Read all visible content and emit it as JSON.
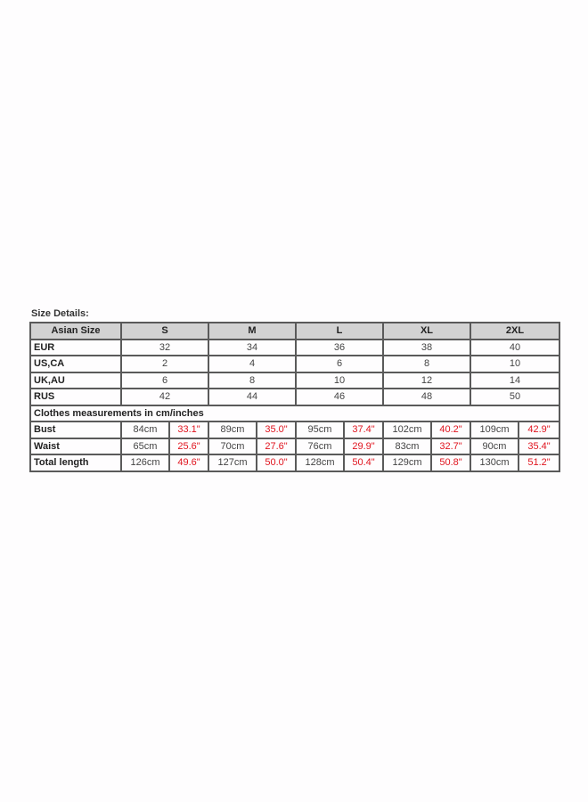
{
  "title": "Size Details:",
  "header": {
    "label": "Asian Size",
    "sizes": [
      "S",
      "M",
      "L",
      "XL",
      "2XL"
    ]
  },
  "conversion_rows": [
    {
      "label": "EUR",
      "values": [
        "32",
        "34",
        "36",
        "38",
        "40"
      ]
    },
    {
      "label": "US,CA",
      "values": [
        "2",
        "4",
        "6",
        "8",
        "10"
      ]
    },
    {
      "label": "UK,AU",
      "values": [
        "6",
        "8",
        "10",
        "12",
        "14"
      ]
    },
    {
      "label": "RUS",
      "values": [
        "42",
        "44",
        "46",
        "48",
        "50"
      ]
    }
  ],
  "section_label": "Clothes measurements in cm/inches",
  "measurement_rows": [
    {
      "label": "Bust",
      "cm": [
        "84cm",
        "89cm",
        "95cm",
        "102cm",
        "109cm"
      ],
      "in": [
        "33.1\"",
        "35.0\"",
        "37.4\"",
        "40.2\"",
        "42.9\""
      ]
    },
    {
      "label": "Waist",
      "cm": [
        "65cm",
        "70cm",
        "76cm",
        "83cm",
        "90cm"
      ],
      "in": [
        "25.6\"",
        "27.6\"",
        "29.9\"",
        "32.7\"",
        "35.4\""
      ]
    },
    {
      "label": "Total length",
      "cm": [
        "126cm",
        "127cm",
        "128cm",
        "129cm",
        "130cm"
      ],
      "in": [
        "49.6\"",
        "50.0\"",
        "50.4\"",
        "50.8\"",
        "51.2\""
      ]
    }
  ],
  "colors": {
    "inch_text": "#e0141e",
    "header_bg": "#d2d2d2",
    "border": "#5a5a5a"
  }
}
